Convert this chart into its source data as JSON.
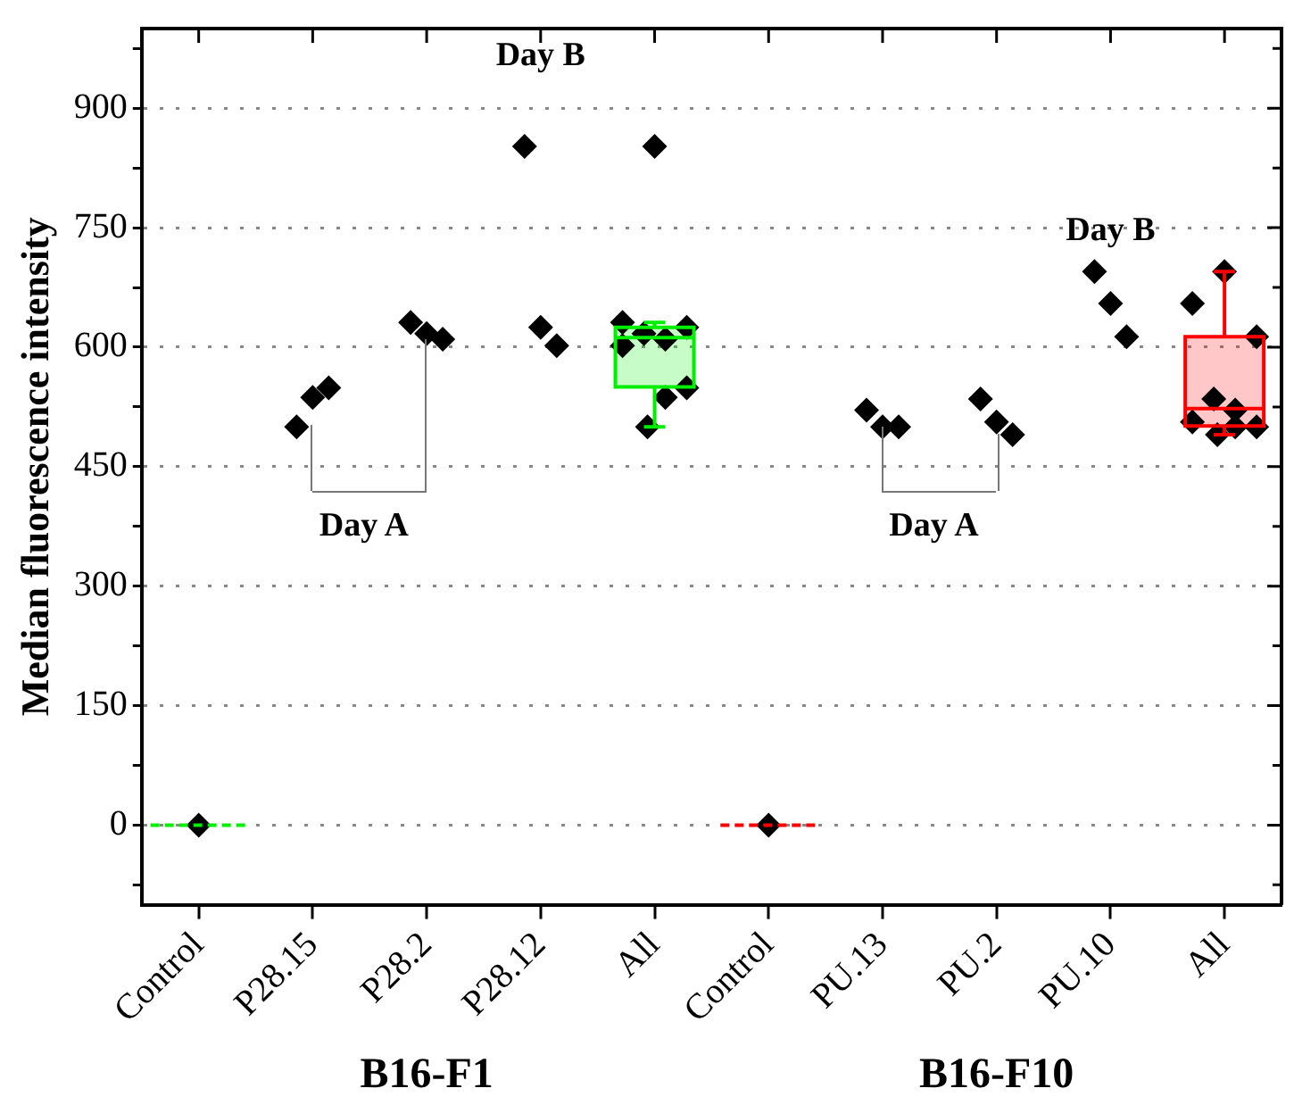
{
  "chart_data": {
    "type": "box",
    "ylabel": "Median fluorescence intensity",
    "categories": [
      "Control",
      "P28.15",
      "P28.2",
      "P28.12",
      "All",
      "Control",
      "PU.13",
      "PU.2",
      "PU.10",
      "All"
    ],
    "ylim": [
      -100,
      1000
    ],
    "yticks": [
      {
        "value": -75,
        "label": null
      },
      0,
      {
        "value": 75,
        "label": null
      },
      150,
      {
        "value": 225,
        "label": null
      },
      300,
      {
        "value": 375,
        "label": null
      },
      450,
      {
        "value": 525,
        "label": null
      },
      600,
      {
        "value": 675,
        "label": null
      },
      750,
      {
        "value": 825,
        "label": null
      },
      900,
      {
        "value": 975,
        "label": null
      }
    ],
    "grid": "y",
    "legend": false,
    "marker": "diamond",
    "annotations": [
      {
        "text": "Day A",
        "x": "P28.15",
        "y": 500
      },
      "Day B",
      {
        "text": "Day A",
        "x": "PU.13",
        "y": 500
      },
      "Day B",
      "B16-F1",
      "B16-F10"
    ],
    "series": [
      {
        "type": "box",
        "colors": [
          "#00ee00",
          null,
          null,
          null,
          "#00ee00",
          "#ff0000",
          null,
          null,
          null,
          "#ff0000"
        ],
        "boxes": [
          {
            "low": 0,
            "q1": 0,
            "median": 0,
            "q3": 0,
            "high": 0
          },
          null,
          null,
          null,
          {
            "low": 500,
            "q1": 550,
            "median": 612,
            "q3": 625,
            "high": 631
          },
          {
            "low": 0,
            "q1": 0,
            "median": 0,
            "q3": 0,
            "high": 0
          },
          null,
          null,
          null,
          {
            "low": 490,
            "q1": 501,
            "median": 523,
            "q3": 613,
            "high": 695
          }
        ]
      },
      {
        "type": "scatter",
        "color": "#000000",
        "values": [
          0,
          500,
          631,
          852,
          852,
          0,
          521,
          535,
          695,
          695
        ]
      },
      {
        "type": "scatter",
        "color": "#000000",
        "values": [
          null,
          537,
          617,
          625,
          631,
          null,
          500,
          506,
          655,
          655
        ]
      },
      {
        "type": "scatter",
        "color": "#000000",
        "values": [
          null,
          549,
          610,
          602,
          625,
          null,
          500,
          490,
          613,
          613
        ]
      },
      {
        "type": "scatter",
        "color": "#000000",
        "values": [
          null,
          null,
          null,
          null,
          617,
          null,
          null,
          null,
          null,
          535
        ]
      },
      {
        "type": "scatter",
        "color": "#000000",
        "values": [
          null,
          null,
          null,
          null,
          610,
          null,
          null,
          null,
          null,
          521
        ]
      },
      {
        "type": "scatter",
        "color": "#000000",
        "values": [
          null,
          null,
          null,
          null,
          602,
          null,
          null,
          null,
          null,
          506
        ]
      },
      {
        "type": "scatter",
        "color": "#000000",
        "values": [
          null,
          null,
          null,
          null,
          549,
          null,
          null,
          null,
          null,
          500
        ]
      },
      {
        "type": "scatter",
        "color": "#000000",
        "values": [
          null,
          null,
          null,
          null,
          537,
          null,
          null,
          null,
          null,
          500
        ]
      },
      {
        "type": "scatter",
        "color": "#000000",
        "values": [
          null,
          null,
          null,
          null,
          500,
          null,
          null,
          null,
          null,
          490
        ]
      }
    ]
  }
}
